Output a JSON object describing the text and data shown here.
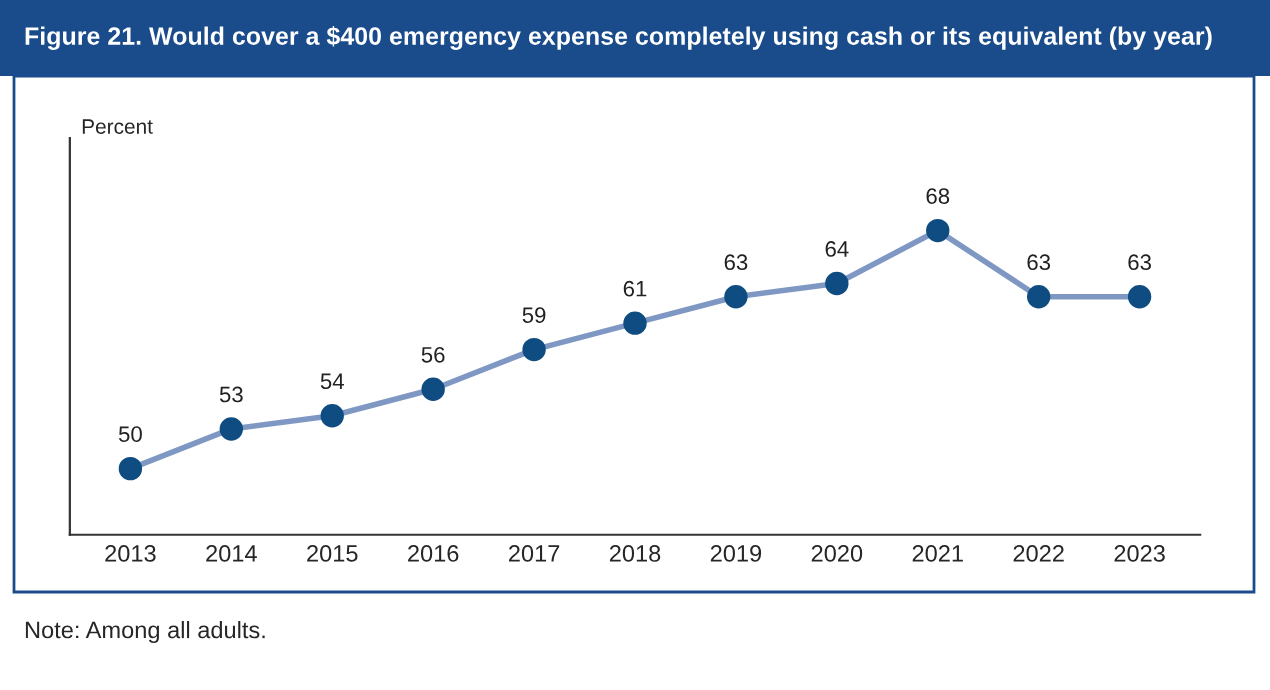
{
  "chart_data": {
    "type": "line",
    "title": "Figure 21. Would cover a $400 emergency expense completely using cash or its equivalent (by year)",
    "ylabel": "Percent",
    "categories": [
      "2013",
      "2014",
      "2015",
      "2016",
      "2017",
      "2018",
      "2019",
      "2020",
      "2021",
      "2022",
      "2023"
    ],
    "series": [
      {
        "color": "#7f98c3",
        "colors": [
          "#0f4c81",
          "#0f4c81",
          "#0f4c81",
          "#0f4c81",
          "#0f4c81",
          "#0f4c81",
          "#0f4c81",
          "#0f4c81",
          "#0f4c81",
          "#0f4c81",
          "#0f4c81"
        ],
        "values": [
          50,
          53,
          54,
          56,
          59,
          61,
          63,
          64,
          68,
          63,
          63
        ]
      }
    ],
    "ylim": [
      45,
      75
    ],
    "data_labels": true,
    "marker": "circle",
    "line_style": "solid",
    "grid": false,
    "legend": false,
    "tick_labels": "x",
    "annotations": [
      "Note: Among all adults."
    ]
  }
}
